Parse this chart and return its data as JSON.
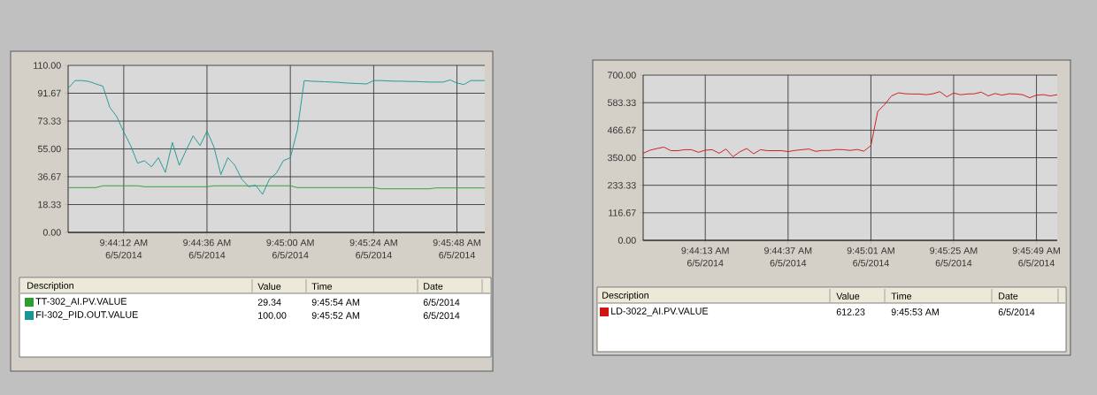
{
  "chart_data": [
    {
      "type": "line",
      "x": [
        9.73222,
        9.73278,
        9.73333,
        9.73389,
        9.73444,
        9.735,
        9.73556,
        9.73611,
        9.73667,
        9.73722,
        9.73778,
        9.73833,
        9.73889,
        9.73944,
        9.74,
        9.74056,
        9.74111,
        9.74167,
        9.74222,
        9.74278,
        9.74333,
        9.74389,
        9.74444,
        9.745,
        9.74556,
        9.74611,
        9.74667,
        9.74722,
        9.74778,
        9.74833,
        9.74889,
        9.74944,
        9.75,
        9.75056,
        9.75111,
        9.75167,
        9.75222,
        9.75278,
        9.75333,
        9.75389,
        9.75444,
        9.755,
        9.75556,
        9.75611,
        9.75667,
        9.75722,
        9.75778,
        9.75833,
        9.75889,
        9.75944,
        9.76,
        9.76056,
        9.76111,
        9.76167,
        9.76222,
        9.76278,
        9.76333,
        9.76389,
        9.76444,
        9.765,
        9.76556
      ],
      "series": [
        {
          "name": "TT-302_AI.PV.VALUE",
          "color": "#2e9e2e",
          "values": [
            29.5,
            29.5,
            29.5,
            29.5,
            29.5,
            30.7,
            30.7,
            30.7,
            30.7,
            30.7,
            30.7,
            30.1,
            30.1,
            30.1,
            30.1,
            30.1,
            30.1,
            30.1,
            30.1,
            30.1,
            30.1,
            30.7,
            30.7,
            30.7,
            30.7,
            30.7,
            30.7,
            30.7,
            30.7,
            30.7,
            30.7,
            30.7,
            30.7,
            29.5,
            29.5,
            29.5,
            29.5,
            29.5,
            29.5,
            29.5,
            29.5,
            29.5,
            29.5,
            29.5,
            29.5,
            28.7,
            28.7,
            28.7,
            28.7,
            28.7,
            28.7,
            28.7,
            28.7,
            29.3,
            29.3,
            29.3,
            29.3,
            29.3,
            29.3,
            29.3,
            29.3
          ]
        },
        {
          "name": "FI-302_PID.OUT.VALUE",
          "color": "#1b9696",
          "values": [
            94.9,
            100,
            100,
            99.4,
            97.8,
            96.3,
            82.3,
            76.3,
            66.2,
            57.2,
            45.6,
            47.2,
            43.2,
            49.2,
            39.5,
            59.2,
            44.2,
            54.2,
            63.6,
            57.2,
            66.8,
            56.2,
            38.1,
            49.2,
            44.2,
            35.1,
            30.1,
            31.1,
            25.1,
            35.1,
            39.1,
            47.2,
            49.2,
            67.2,
            100,
            99.6,
            99.4,
            99.2,
            99.0,
            98.8,
            98.4,
            98.2,
            98.0,
            97.8,
            100,
            100,
            99.8,
            99.6,
            99.6,
            99.4,
            99.4,
            99.2,
            99.0,
            99.0,
            99.0,
            100.4,
            98.4,
            97.4,
            100,
            100,
            100
          ]
        }
      ],
      "xlim": [
        9.73222,
        9.76556
      ],
      "ylim": [
        0,
        110
      ],
      "xticks": [
        {
          "value": 9.73667,
          "label": "9:44:12 AM"
        },
        {
          "value": 9.74333,
          "label": "9:44:36 AM"
        },
        {
          "value": 9.75,
          "label": "9:45:00 AM"
        },
        {
          "value": 9.75667,
          "label": "9:45:24 AM"
        },
        {
          "value": 9.76333,
          "label": "9:45:48 AM"
        }
      ],
      "yticks": [
        {
          "value": 0,
          "label": "0.00"
        },
        {
          "value": 18.33,
          "label": "18.33"
        },
        {
          "value": 36.67,
          "label": "36.67"
        },
        {
          "value": 55,
          "label": "55.00"
        },
        {
          "value": 73.33,
          "label": "73.33"
        },
        {
          "value": 91.67,
          "label": "91.67"
        },
        {
          "value": 110,
          "label": "110.00"
        }
      ],
      "grid": true,
      "legend": "bottom",
      "annotations": [
        "Description",
        "Value",
        "Time",
        "Date",
        "29.34",
        "9:45:54 AM",
        "6/5/2014",
        "100.00",
        "9:45:52 AM",
        "6/5/2014",
        "6/5/2014",
        "6/5/2014",
        "6/5/2014",
        "6/5/2014",
        "6/5/2014"
      ]
    },
    {
      "type": "line",
      "x": [
        9.73194,
        9.7325,
        9.73306,
        9.73361,
        9.73417,
        9.73472,
        9.73528,
        9.73583,
        9.73639,
        9.73694,
        9.7375,
        9.73806,
        9.73861,
        9.73917,
        9.73972,
        9.74028,
        9.74083,
        9.74139,
        9.74194,
        9.7425,
        9.74306,
        9.74361,
        9.74417,
        9.74472,
        9.74528,
        9.74583,
        9.74639,
        9.74694,
        9.7475,
        9.74806,
        9.74861,
        9.74917,
        9.74972,
        9.75028,
        9.75083,
        9.75139,
        9.75194,
        9.7525,
        9.75306,
        9.75361,
        9.75417,
        9.75472,
        9.75528,
        9.75583,
        9.75639,
        9.75694,
        9.7575,
        9.75806,
        9.75861,
        9.75917,
        9.75972,
        9.76028,
        9.76083,
        9.76139,
        9.76194,
        9.7625,
        9.76306,
        9.76361,
        9.76417,
        9.76472,
        9.76528
      ],
      "series": [
        {
          "name": "LD-3022_AI.PV.VALUE",
          "color": "#d01414",
          "values": [
            369,
            382,
            389,
            395,
            380,
            380,
            384,
            384,
            373,
            382,
            384,
            369,
            387,
            354,
            375,
            389,
            367,
            384,
            380,
            380,
            380,
            376,
            381,
            384,
            387,
            377,
            381,
            381,
            385,
            384,
            381,
            385,
            378,
            402,
            546,
            576,
            612,
            625,
            621,
            620,
            620,
            617,
            621,
            630,
            608,
            624,
            617,
            620,
            621,
            628,
            612,
            622,
            615,
            621,
            620,
            617,
            604,
            615,
            617,
            612,
            617
          ]
        }
      ],
      "xlim": [
        9.73194,
        9.76528
      ],
      "ylim": [
        0,
        700
      ],
      "xticks": [
        {
          "value": 9.73694,
          "label": "9:44:13 AM"
        },
        {
          "value": 9.74361,
          "label": "9:44:37 AM"
        },
        {
          "value": 9.75028,
          "label": "9:45:01 AM"
        },
        {
          "value": 9.75694,
          "label": "9:45:25 AM"
        },
        {
          "value": 9.76361,
          "label": "9:45:49 AM"
        }
      ],
      "yticks": [
        {
          "value": 0,
          "label": "0.00"
        },
        {
          "value": 116.67,
          "label": "116.67"
        },
        {
          "value": 233.33,
          "label": "233.33"
        },
        {
          "value": 350,
          "label": "350.00"
        },
        {
          "value": 466.67,
          "label": "466.67"
        },
        {
          "value": 583.33,
          "label": "583.33"
        },
        {
          "value": 700,
          "label": "700.00"
        }
      ],
      "grid": true,
      "legend": "bottom",
      "annotations": [
        "Description",
        "Value",
        "Time",
        "Date",
        "612.23",
        "9:45:53 AM",
        "6/5/2014",
        "6/5/2014",
        "6/5/2014",
        "6/5/2014",
        "6/5/2014",
        "6/5/2014"
      ]
    }
  ]
}
